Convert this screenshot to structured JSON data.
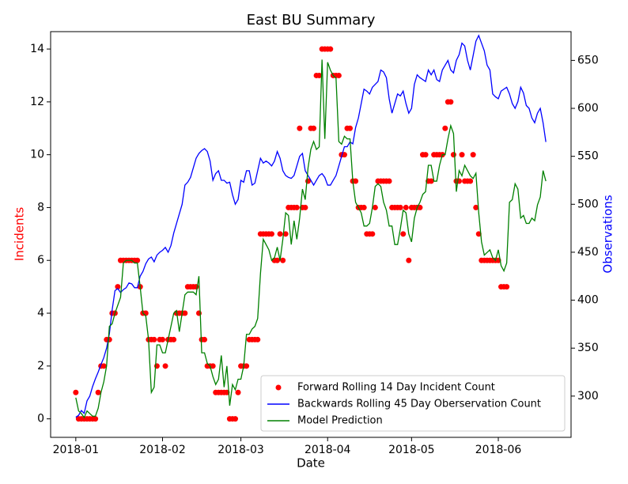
{
  "chart_data": {
    "type": "line",
    "title": "East BU Summary",
    "xlabel": "Date",
    "ylabel": "Incidents",
    "y2label": "Observations",
    "y_axis_color": "red",
    "y2_axis_color": "blue",
    "legend": "lower right",
    "x": [
      "2018-01-01",
      "2018-01-02",
      "2018-01-03",
      "2018-01-04",
      "2018-01-05",
      "2018-01-06",
      "2018-01-07",
      "2018-01-08",
      "2018-01-09",
      "2018-01-10",
      "2018-01-11",
      "2018-01-12",
      "2018-01-13",
      "2018-01-14",
      "2018-01-15",
      "2018-01-16",
      "2018-01-17",
      "2018-01-18",
      "2018-01-19",
      "2018-01-20",
      "2018-01-21",
      "2018-01-22",
      "2018-01-23",
      "2018-01-24",
      "2018-01-25",
      "2018-01-26",
      "2018-01-27",
      "2018-01-28",
      "2018-01-29",
      "2018-01-30",
      "2018-01-31",
      "2018-02-01",
      "2018-02-02",
      "2018-02-03",
      "2018-02-04",
      "2018-02-05",
      "2018-02-06",
      "2018-02-07",
      "2018-02-08",
      "2018-02-09",
      "2018-02-10",
      "2018-02-11",
      "2018-02-12",
      "2018-02-13",
      "2018-02-14",
      "2018-02-15",
      "2018-02-16",
      "2018-02-17",
      "2018-02-18",
      "2018-02-19",
      "2018-02-20",
      "2018-02-21",
      "2018-02-22",
      "2018-02-23",
      "2018-02-24",
      "2018-02-25",
      "2018-02-26",
      "2018-02-27",
      "2018-02-28",
      "2018-03-01",
      "2018-03-02",
      "2018-03-03",
      "2018-03-04",
      "2018-03-05",
      "2018-03-06",
      "2018-03-07",
      "2018-03-08",
      "2018-03-09",
      "2018-03-10",
      "2018-03-11",
      "2018-03-12",
      "2018-03-13",
      "2018-03-14",
      "2018-03-15",
      "2018-03-16",
      "2018-03-17",
      "2018-03-18",
      "2018-03-19",
      "2018-03-20",
      "2018-03-21",
      "2018-03-22",
      "2018-03-23",
      "2018-03-24",
      "2018-03-25",
      "2018-03-26",
      "2018-03-27",
      "2018-03-28",
      "2018-03-29",
      "2018-03-30",
      "2018-03-31",
      "2018-04-01",
      "2018-04-02",
      "2018-04-03",
      "2018-04-04",
      "2018-04-05",
      "2018-04-06",
      "2018-04-07",
      "2018-04-08",
      "2018-04-09",
      "2018-04-10",
      "2018-04-11",
      "2018-04-12",
      "2018-04-13",
      "2018-04-14",
      "2018-04-15",
      "2018-04-16",
      "2018-04-17",
      "2018-04-18",
      "2018-04-19",
      "2018-04-20",
      "2018-04-21",
      "2018-04-22",
      "2018-04-23",
      "2018-04-24",
      "2018-04-25",
      "2018-04-26",
      "2018-04-27",
      "2018-04-28",
      "2018-04-29",
      "2018-04-30",
      "2018-05-01",
      "2018-05-02",
      "2018-05-03",
      "2018-05-04",
      "2018-05-05",
      "2018-05-06",
      "2018-05-07",
      "2018-05-08",
      "2018-05-09",
      "2018-05-10",
      "2018-05-11",
      "2018-05-12",
      "2018-05-13",
      "2018-05-14",
      "2018-05-15",
      "2018-05-16",
      "2018-05-17",
      "2018-05-18",
      "2018-05-19",
      "2018-05-20",
      "2018-05-21",
      "2018-05-22",
      "2018-05-23",
      "2018-05-24",
      "2018-05-25",
      "2018-05-26",
      "2018-05-27",
      "2018-05-28",
      "2018-05-29",
      "2018-05-30",
      "2018-05-31",
      "2018-06-01",
      "2018-06-02",
      "2018-06-03",
      "2018-06-04",
      "2018-06-05",
      "2018-06-06",
      "2018-06-07",
      "2018-06-08",
      "2018-06-09",
      "2018-06-10",
      "2018-06-11",
      "2018-06-12",
      "2018-06-13",
      "2018-06-14",
      "2018-06-15",
      "2018-06-16",
      "2018-06-17",
      "2018-06-18"
    ],
    "xlim": [
      "2017-12-23",
      "2018-06-27"
    ],
    "xticks": [
      {
        "value": "2018-01-01",
        "label": "2018-01"
      },
      {
        "value": "2018-02-01",
        "label": "2018-02"
      },
      {
        "value": "2018-03-01",
        "label": "2018-03"
      },
      {
        "value": "2018-04-01",
        "label": "2018-04"
      },
      {
        "value": "2018-05-01",
        "label": "2018-05"
      },
      {
        "value": "2018-06-01",
        "label": "2018-06"
      }
    ],
    "ylim": [
      -0.7,
      14.66
    ],
    "yticks": [
      0,
      2,
      4,
      6,
      8,
      10,
      12,
      14
    ],
    "y2lim": [
      257,
      680
    ],
    "y2ticks": [
      300,
      350,
      400,
      450,
      500,
      550,
      600,
      650
    ],
    "series": [
      {
        "name": "Forward Rolling 14 Day Incident Count",
        "color": "red",
        "style": "points",
        "values": [
          1,
          0,
          0,
          0,
          0,
          0,
          0,
          0,
          1,
          2,
          2,
          3,
          3,
          4,
          4,
          5,
          6,
          6,
          6,
          6,
          6,
          6,
          6,
          5,
          4,
          4,
          3,
          3,
          3,
          2,
          3,
          3,
          2,
          3,
          3,
          3,
          4,
          4,
          4,
          4,
          5,
          5,
          5,
          5,
          4,
          3,
          3,
          2,
          2,
          2,
          1,
          1,
          1,
          1,
          1,
          0,
          0,
          0,
          1,
          2,
          2,
          2,
          3,
          3,
          3,
          3,
          7,
          7,
          7,
          7,
          7,
          6,
          6,
          7,
          6,
          7,
          8,
          8,
          8,
          8,
          11,
          8,
          8,
          9,
          11,
          11,
          13,
          13,
          14,
          14,
          14,
          14,
          13,
          13,
          13,
          10,
          10,
          11,
          11,
          9,
          9,
          8,
          8,
          8,
          7,
          7,
          7,
          8,
          9,
          9,
          9,
          9,
          9,
          8,
          8,
          8,
          8,
          7,
          8,
          6,
          8,
          8,
          8,
          8,
          10,
          10,
          9,
          9,
          10,
          10,
          10,
          10,
          11,
          12,
          12,
          10,
          9,
          9,
          10,
          9,
          9,
          9,
          10,
          8,
          7,
          6,
          6,
          6,
          6,
          6,
          6,
          6,
          5,
          5,
          5,
          null,
          null,
          null,
          null,
          null,
          null,
          null,
          null,
          null,
          null,
          null,
          null,
          null,
          null
        ]
      },
      {
        "name": "Backwards Rolling 45 Day Oberservation Count",
        "color": "blue",
        "style": "line",
        "axis": "y2",
        "values": [
          278,
          280,
          285,
          282,
          295,
          300,
          310,
          318,
          325,
          333,
          340,
          350,
          365,
          390,
          410,
          412,
          408,
          411,
          413,
          418,
          417,
          413,
          413,
          425,
          430,
          438,
          443,
          445,
          440,
          447,
          450,
          452,
          455,
          450,
          457,
          470,
          480,
          490,
          500,
          520,
          523,
          528,
          538,
          548,
          553,
          556,
          558,
          555,
          545,
          525,
          532,
          535,
          525,
          525,
          522,
          523,
          510,
          500,
          505,
          525,
          523,
          535,
          535,
          520,
          522,
          535,
          548,
          543,
          545,
          543,
          540,
          545,
          555,
          548,
          535,
          530,
          528,
          527,
          530,
          540,
          550,
          553,
          535,
          530,
          525,
          520,
          525,
          530,
          532,
          528,
          520,
          520,
          525,
          530,
          540,
          550,
          560,
          560,
          565,
          563,
          580,
          590,
          605,
          620,
          618,
          615,
          622,
          625,
          628,
          640,
          638,
          632,
          610,
          595,
          605,
          615,
          613,
          618,
          605,
          595,
          600,
          625,
          635,
          632,
          630,
          628,
          640,
          635,
          640,
          630,
          628,
          640,
          645,
          650,
          640,
          637,
          650,
          656,
          668,
          665,
          650,
          640,
          655,
          670,
          676,
          668,
          660,
          645,
          640,
          615,
          612,
          610,
          618,
          620,
          622,
          615,
          605,
          600,
          607,
          622,
          616,
          603,
          600,
          590,
          585,
          595,
          600,
          585,
          565
        ]
      },
      {
        "name": "Model Prediction",
        "color": "green",
        "style": "line",
        "values": [
          0.8,
          0.3,
          0.2,
          0.05,
          0.3,
          0.2,
          0.1,
          0.1,
          0.4,
          1.0,
          1.4,
          2.0,
          3.5,
          3.6,
          4.0,
          4.3,
          4.6,
          5.9,
          6.0,
          6.0,
          6.0,
          5.9,
          5.9,
          5.0,
          4.0,
          3.9,
          3.0,
          1.0,
          1.2,
          2.8,
          2.8,
          2.5,
          2.5,
          3.0,
          3.5,
          4.0,
          4.1,
          3.3,
          4.0,
          4.7,
          4.8,
          4.8,
          4.8,
          4.7,
          5.4,
          2.5,
          2.5,
          2.1,
          2.0,
          1.6,
          1.3,
          1.5,
          2.4,
          1.2,
          2.0,
          0.5,
          1.3,
          1.1,
          1.5,
          1.5,
          2.0,
          3.2,
          3.2,
          3.4,
          3.5,
          3.8,
          5.5,
          6.8,
          6.6,
          6.4,
          6.0,
          6.1,
          6.5,
          6.0,
          6.8,
          7.8,
          7.7,
          6.6,
          7.5,
          6.8,
          7.6,
          8.7,
          8.3,
          9.5,
          10.2,
          10.5,
          10.2,
          10.3,
          13.6,
          10.6,
          13.5,
          13.2,
          13.0,
          12.9,
          10.5,
          10.4,
          10.7,
          10.6,
          10.6,
          9.0,
          8.2,
          8.0,
          7.8,
          7.3,
          7.3,
          7.4,
          8.0,
          8.8,
          8.9,
          8.8,
          8.2,
          7.9,
          7.3,
          7.3,
          6.6,
          6.6,
          7.2,
          7.9,
          7.8,
          7.0,
          6.7,
          7.6,
          8.0,
          8.2,
          8.5,
          8.6,
          9.6,
          9.6,
          9.0,
          9.0,
          9.6,
          10.0,
          10.0,
          10.6,
          11.1,
          10.8,
          8.6,
          9.4,
          9.2,
          9.6,
          9.4,
          9.2,
          9.1,
          9.3,
          7.8,
          6.7,
          6.2,
          6.3,
          6.4,
          6.1,
          6.0,
          6.4,
          5.8,
          5.6,
          5.9,
          8.2,
          8.3,
          8.9,
          8.7,
          7.6,
          7.7,
          7.4,
          7.4,
          7.6,
          7.5,
          8.1,
          8.4,
          9.4,
          9.0
        ]
      }
    ]
  }
}
